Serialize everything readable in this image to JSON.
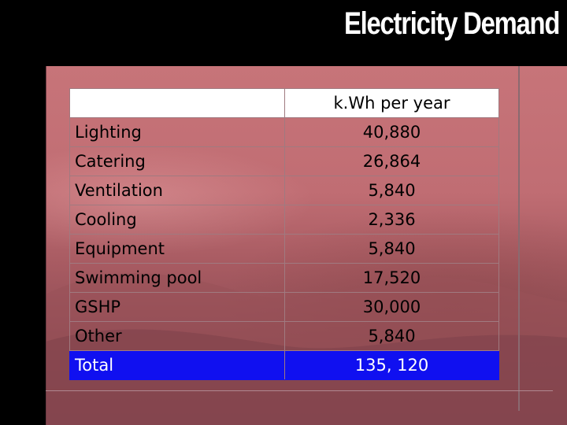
{
  "slide": {
    "title": "Electricity Demand"
  },
  "table": {
    "header": {
      "label": "",
      "value": "k.Wh per year"
    },
    "rows": [
      {
        "label": "Lighting",
        "value": "40,880"
      },
      {
        "label": "Catering",
        "value": "26,864"
      },
      {
        "label": "Ventilation",
        "value": "5,840"
      },
      {
        "label": "Cooling",
        "value": "2,336"
      },
      {
        "label": "Equipment",
        "value": "5,840"
      },
      {
        "label": "Swimming pool",
        "value": "17,520"
      },
      {
        "label": "GSHP",
        "value": "30,000"
      },
      {
        "label": "Other",
        "value": "5,840"
      }
    ],
    "total": {
      "label": "Total",
      "value": "135, 120"
    }
  },
  "colors": {
    "background": "#000000",
    "photo_tint": "#c06d73",
    "total_row": "#1010f0",
    "header_row": "#ffffff"
  }
}
